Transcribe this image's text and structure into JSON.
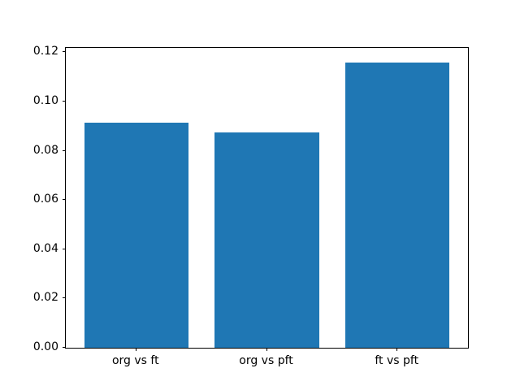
{
  "chart_data": {
    "type": "bar",
    "title": "",
    "xlabel": "",
    "ylabel": "",
    "categories": [
      "org vs ft",
      "org vs pft",
      "ft vs pft"
    ],
    "values": [
      0.0915,
      0.0875,
      0.116
    ],
    "bar_color": "#1f77b4",
    "bar_width_units": 0.8,
    "xlim": [
      -0.54,
      2.54
    ],
    "ylim": [
      0,
      0.1218
    ],
    "yticks": [
      0.0,
      0.02,
      0.04,
      0.06,
      0.08,
      0.1,
      0.12
    ],
    "ytick_labels": [
      "0.00",
      "0.02",
      "0.04",
      "0.06",
      "0.08",
      "0.10",
      "0.12"
    ],
    "grid": false,
    "legend": null
  }
}
